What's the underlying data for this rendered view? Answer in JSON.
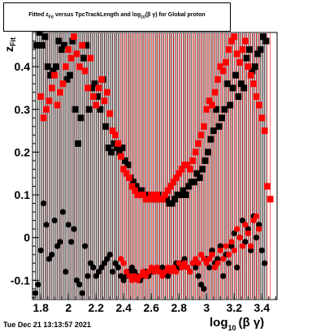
{
  "window": {
    "timestamp": "Tue Dec 21 13:13:57 2021"
  },
  "chart_data": {
    "type": "scatter",
    "title_main": "Fitted  z",
    "title_sub1": "Fit",
    "title_mid": "  versus TpcTrackLength and log",
    "title_sub2": "10",
    "title_tail": "(β γ) for Global proton",
    "ylabel_main": "z",
    "ylabel_sub": "Fit",
    "xlabel_main": "log",
    "xlabel_sub": "10",
    "xlabel_tail": "(β γ)",
    "xlim": [
      1.74,
      3.51
    ],
    "ylim": [
      -0.145,
      0.48
    ],
    "xticks": [
      "1.8",
      "2",
      "2.2",
      "2.4",
      "2.6",
      "2.8",
      "3",
      "3.2",
      "3.4"
    ],
    "yticks": [
      "-0.1",
      "0",
      "0.1",
      "0.2",
      "0.3",
      "0.4"
    ],
    "xtick_values": [
      1.8,
      2.0,
      2.2,
      2.4,
      2.6,
      2.8,
      3.0,
      3.2,
      3.4
    ],
    "ytick_values": [
      -0.1,
      0,
      0.1,
      0.2,
      0.3,
      0.4
    ],
    "colors": {
      "series_upper_black": "#000000",
      "series_upper_red": "#ff0000",
      "series_lower_black": "#000000",
      "series_lower_red": "#ff0000",
      "error_black": "#000000",
      "error_red": "#ff0000"
    },
    "series": [
      {
        "marker": "square",
        "color": "#000000",
        "x": [
          1.77,
          1.79,
          1.81,
          1.83,
          1.85,
          1.87,
          1.89,
          1.91,
          1.93,
          1.95,
          1.97,
          1.99,
          2.01,
          2.03,
          2.05,
          2.07,
          2.09,
          2.11,
          2.13,
          2.15,
          2.17,
          2.19,
          2.21,
          2.23,
          2.25,
          2.27,
          2.29,
          2.31,
          2.33,
          2.35,
          2.37,
          2.39,
          2.41,
          2.43,
          2.45,
          2.47,
          2.49,
          2.51,
          2.53,
          2.55,
          2.57,
          2.59,
          2.61,
          2.63,
          2.65,
          2.67,
          2.69,
          2.71,
          2.73,
          2.75,
          2.77,
          2.79,
          2.81,
          2.83,
          2.85,
          2.87,
          2.89,
          2.91,
          2.93,
          2.95,
          2.97,
          2.99,
          3.01,
          3.03,
          3.05,
          3.07,
          3.09,
          3.11,
          3.13,
          3.15,
          3.17,
          3.19,
          3.21,
          3.23,
          3.25,
          3.27,
          3.29,
          3.31,
          3.33,
          3.35,
          3.37,
          3.39,
          3.41,
          3.43
        ],
        "y": [
          0.45,
          0.48,
          0.45,
          0.47,
          0.4,
          0.38,
          0.39,
          0.4,
          0.46,
          0.44,
          0.45,
          0.37,
          0.38,
          0.46,
          0.3,
          0.22,
          0.28,
          0.42,
          0.45,
          0.3,
          0.35,
          0.36,
          0.33,
          0.3,
          0.37,
          0.26,
          0.21,
          0.2,
          0.22,
          0.21,
          0.2,
          0.21,
          0.18,
          0.17,
          0.14,
          0.13,
          0.12,
          0.11,
          0.11,
          0.1,
          0.09,
          0.1,
          0.09,
          0.09,
          0.1,
          0.09,
          0.09,
          0.09,
          0.08,
          0.08,
          0.09,
          0.1,
          0.1,
          0.11,
          0.1,
          0.12,
          0.13,
          0.13,
          0.15,
          0.14,
          0.16,
          0.18,
          0.2,
          0.23,
          0.25,
          0.3,
          0.26,
          0.28,
          0.3,
          0.36,
          0.31,
          0.35,
          0.38,
          0.33,
          0.36,
          0.35,
          0.42,
          0.44,
          0.39,
          0.4,
          0.43,
          0.44,
          0.47,
          0.46
        ]
      },
      {
        "marker": "square",
        "color": "#ff0000",
        "x": [
          1.8,
          1.82,
          1.84,
          1.86,
          1.88,
          1.9,
          1.92,
          1.94,
          1.96,
          1.98,
          2.0,
          2.02,
          2.04,
          2.06,
          2.08,
          2.1,
          2.12,
          2.14,
          2.16,
          2.18,
          2.2,
          2.22,
          2.24,
          2.26,
          2.28,
          2.3,
          2.32,
          2.34,
          2.36,
          2.38,
          2.4,
          2.42,
          2.44,
          2.46,
          2.48,
          2.5,
          2.52,
          2.54,
          2.56,
          2.58,
          2.6,
          2.62,
          2.64,
          2.66,
          2.68,
          2.7,
          2.72,
          2.74,
          2.76,
          2.78,
          2.8,
          2.82,
          2.84,
          2.86,
          2.88,
          2.9,
          2.92,
          2.94,
          2.96,
          2.98,
          3.0,
          3.02,
          3.04,
          3.06,
          3.08,
          3.1,
          3.12,
          3.14,
          3.16,
          3.18,
          3.2,
          3.22,
          3.24,
          3.26,
          3.28,
          3.3,
          3.32,
          3.34,
          3.36,
          3.38,
          3.4,
          3.42,
          3.44,
          3.46
        ],
        "y": [
          0.33,
          0.28,
          0.3,
          0.32,
          0.35,
          0.38,
          0.31,
          0.34,
          0.36,
          0.4,
          0.44,
          0.42,
          0.47,
          0.43,
          0.4,
          0.45,
          0.39,
          0.35,
          0.42,
          0.33,
          0.31,
          0.35,
          0.37,
          0.32,
          0.34,
          0.29,
          0.25,
          0.24,
          0.22,
          0.19,
          0.16,
          0.15,
          0.14,
          0.12,
          0.11,
          0.1,
          0.1,
          0.1,
          0.09,
          0.09,
          0.1,
          0.09,
          0.1,
          0.09,
          0.09,
          0.1,
          0.11,
          0.12,
          0.13,
          0.14,
          0.15,
          0.16,
          0.17,
          0.17,
          0.16,
          0.18,
          0.2,
          0.22,
          0.24,
          0.26,
          0.3,
          0.32,
          0.31,
          0.34,
          0.37,
          0.4,
          0.39,
          0.41,
          0.44,
          0.46,
          0.47,
          0.43,
          0.41,
          0.44,
          0.46,
          0.4,
          0.38,
          0.36,
          0.33,
          0.31,
          0.28,
          0.25,
          0.12,
          0.09
        ]
      },
      {
        "marker": "circle",
        "color": "#000000",
        "x": [
          1.76,
          1.78,
          1.8,
          1.82,
          1.84,
          1.86,
          1.88,
          1.9,
          1.92,
          1.94,
          1.96,
          1.98,
          2.0,
          2.02,
          2.04,
          2.06,
          2.08,
          2.1,
          2.12,
          2.14,
          2.16,
          2.18,
          2.2,
          2.22,
          2.24,
          2.26,
          2.28,
          2.3,
          2.32,
          2.34,
          2.36,
          2.38,
          2.4,
          2.42,
          2.44,
          2.46,
          2.48,
          2.5,
          2.52,
          2.54,
          2.56,
          2.58,
          2.6,
          2.62,
          2.64,
          2.66,
          2.68,
          2.7,
          2.72,
          2.74,
          2.76,
          2.78,
          2.8,
          2.82,
          2.84,
          2.86,
          2.88,
          2.9,
          2.92,
          2.94,
          2.96,
          2.98,
          3.0,
          3.02,
          3.04,
          3.06,
          3.08,
          3.1,
          3.12,
          3.14,
          3.16,
          3.18,
          3.2,
          3.22,
          3.24,
          3.26,
          3.28,
          3.3,
          3.32,
          3.34,
          3.36,
          3.38,
          3.4,
          3.42
        ],
        "y": [
          -0.13,
          -0.11,
          -0.03,
          0.08,
          0.03,
          -0.05,
          -0.04,
          0.04,
          -0.02,
          -0.01,
          0.06,
          -0.08,
          0.03,
          -0.01,
          0.02,
          -0.1,
          -0.11,
          -0.13,
          -0.02,
          -0.09,
          -0.06,
          -0.07,
          -0.09,
          -0.08,
          -0.07,
          -0.06,
          -0.05,
          -0.04,
          -0.08,
          -0.06,
          -0.07,
          -0.09,
          -0.1,
          -0.09,
          -0.08,
          -0.07,
          -0.08,
          -0.09,
          -0.1,
          -0.09,
          -0.08,
          -0.09,
          -0.08,
          -0.08,
          -0.07,
          -0.08,
          -0.07,
          -0.08,
          -0.09,
          -0.08,
          -0.07,
          -0.06,
          -0.07,
          -0.06,
          -0.05,
          -0.07,
          -0.08,
          -0.06,
          -0.07,
          -0.09,
          -0.11,
          -0.12,
          -0.05,
          -0.07,
          -0.03,
          -0.06,
          -0.05,
          -0.02,
          -0.09,
          -0.04,
          -0.06,
          -0.02,
          0.01,
          -0.07,
          0.0,
          0.04,
          -0.01,
          0.02,
          -0.03,
          0.05,
          0.0,
          0.03,
          -0.03,
          -0.06
        ]
      },
      {
        "marker": "circle",
        "color": "#ff0000",
        "x": [
          2.38,
          2.4,
          2.42,
          2.44,
          2.46,
          2.48,
          2.5,
          2.52,
          2.54,
          2.56,
          2.58,
          2.6,
          2.62,
          2.64,
          2.66,
          2.68,
          2.7,
          2.72,
          2.74,
          2.76,
          2.78,
          2.8,
          2.82,
          2.84,
          2.86,
          2.88,
          2.9,
          2.92,
          2.94,
          2.96,
          2.98,
          3.0,
          3.02,
          3.04,
          3.06,
          3.08,
          3.1,
          3.12,
          3.14,
          3.16,
          3.18,
          3.2,
          3.22,
          3.24,
          3.26,
          3.28,
          3.3,
          3.32,
          3.34,
          3.36,
          3.38
        ],
        "y": [
          -0.05,
          -0.06,
          -0.08,
          -0.09,
          -0.1,
          -0.09,
          -0.1,
          -0.09,
          -0.08,
          -0.09,
          -0.08,
          -0.07,
          -0.08,
          -0.07,
          -0.08,
          -0.09,
          -0.08,
          -0.07,
          -0.08,
          -0.07,
          -0.08,
          -0.06,
          -0.07,
          -0.06,
          -0.07,
          -0.08,
          -0.06,
          -0.05,
          -0.06,
          -0.04,
          -0.05,
          -0.06,
          -0.05,
          -0.04,
          -0.07,
          -0.06,
          -0.03,
          -0.05,
          -0.02,
          -0.04,
          -0.01,
          -0.03,
          0.02,
          0.0,
          -0.02,
          0.03,
          0.01,
          -0.02,
          0.04,
          0.05,
          0.02
        ]
      }
    ]
  }
}
